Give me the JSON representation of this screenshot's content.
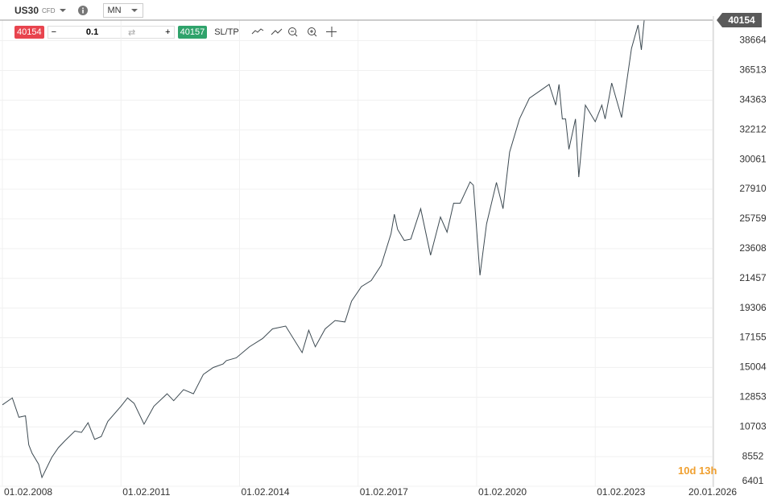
{
  "toolbar": {
    "symbol": "US30",
    "symbol_type": "CFD",
    "timeframe": "MN",
    "sell_price": "40154",
    "quantity": "0.1",
    "buy_price": "40157",
    "sl_tp": "SL/TP"
  },
  "countdown": "10d 13h",
  "chart_data": {
    "type": "line",
    "color": "#3d4a52",
    "grid": true,
    "current_price": 40154,
    "x": [
      "2008-02",
      "2008-05",
      "2008-07",
      "2008-09",
      "2008-10",
      "2008-11",
      "2009-01",
      "2009-02",
      "2009-05",
      "2009-07",
      "2009-09",
      "2009-12",
      "2010-02",
      "2010-04",
      "2010-06",
      "2010-08",
      "2010-10",
      "2011-02",
      "2011-04",
      "2011-06",
      "2011-09",
      "2011-12",
      "2012-04",
      "2012-06",
      "2012-09",
      "2012-12",
      "2013-03",
      "2013-06",
      "2013-09",
      "2013-10",
      "2014-01",
      "2014-05",
      "2014-09",
      "2014-12",
      "2015-04",
      "2015-09",
      "2015-11",
      "2016-01",
      "2016-04",
      "2016-07",
      "2016-10",
      "2016-12",
      "2017-03",
      "2017-06",
      "2017-09",
      "2017-12",
      "2018-01",
      "2018-02",
      "2018-04",
      "2018-06",
      "2018-09",
      "2018-12",
      "2019-03",
      "2019-05",
      "2019-07",
      "2019-09",
      "2019-12",
      "2020-01",
      "2020-03",
      "2020-05",
      "2020-08",
      "2020-10",
      "2020-12",
      "2021-03",
      "2021-06",
      "2021-09",
      "2021-12",
      "2022-02",
      "2022-03",
      "2022-04",
      "2022-05",
      "2022-06",
      "2022-08",
      "2022-09",
      "2022-11",
      "2023-02",
      "2023-04",
      "2023-05",
      "2023-07",
      "2023-10",
      "2024-01",
      "2024-03",
      "2024-04",
      "2024-05"
    ],
    "values": [
      12300,
      12800,
      11400,
      11500,
      9400,
      8800,
      8000,
      7040,
      8500,
      9200,
      9700,
      10400,
      10300,
      11000,
      9800,
      10000,
      11100,
      12200,
      12800,
      12400,
      10900,
      12200,
      13100,
      12600,
      13400,
      13100,
      14500,
      15000,
      15260,
      15500,
      15700,
      16500,
      17100,
      17800,
      18000,
      16080,
      17700,
      16500,
      17800,
      18400,
      18300,
      19800,
      20860,
      21300,
      22400,
      24700,
      26100,
      25000,
      24200,
      24300,
      26500,
      23130,
      25900,
      24800,
      26900,
      26900,
      28440,
      28200,
      21680,
      25400,
      28400,
      26500,
      30600,
      33000,
      34500,
      35000,
      35500,
      34000,
      35500,
      33000,
      33000,
      30800,
      33000,
      28790,
      34000,
      32800,
      34000,
      33000,
      35600,
      33100,
      38100,
      39800,
      38000,
      40500
    ],
    "xlim": [
      "2008-02",
      "2026-01-20"
    ],
    "xticks": [
      {
        "value": "2008-02",
        "label": "01.02.2008"
      },
      {
        "value": "2011-02",
        "label": "01.02.2011"
      },
      {
        "value": "2014-02",
        "label": "01.02.2014"
      },
      {
        "value": "2017-02",
        "label": "01.02.2017"
      },
      {
        "value": "2020-02",
        "label": "01.02.2020"
      },
      {
        "value": "2023-02",
        "label": "01.02.2023"
      },
      {
        "value": "2026-01-20",
        "label": "20.01.2026"
      }
    ],
    "ylim": [
      6401,
      40154
    ],
    "yticks": [
      6401,
      8552,
      10703,
      12853,
      15004,
      17155,
      19306,
      21457,
      23608,
      25759,
      27910,
      30061,
      32212,
      34363,
      36513,
      38664
    ]
  }
}
